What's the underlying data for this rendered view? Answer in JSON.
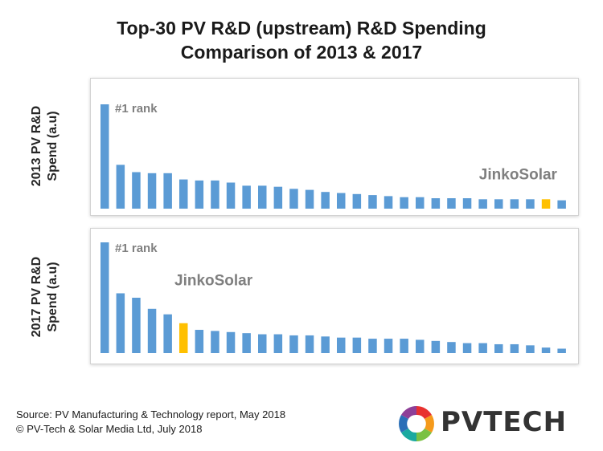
{
  "title_line1": "Top-30 PV R&D (upstream) R&D Spending",
  "title_line2": "Comparison of 2013 & 2017",
  "colors": {
    "bar": "#5b9bd5",
    "highlight": "#ffc000",
    "annotation": "#7f7f7f"
  },
  "chart_data": [
    {
      "type": "bar",
      "ylabel_line1": "2013 PV R&D",
      "ylabel_line2": "Spend (a.u)",
      "ylim": [
        0,
        100
      ],
      "values": [
        100,
        42,
        35,
        34,
        34,
        28,
        27,
        27,
        25,
        22,
        22,
        21,
        19,
        18,
        16,
        15,
        14,
        13,
        12,
        11,
        11,
        10,
        10,
        10,
        9,
        9,
        9,
        9,
        9,
        8
      ],
      "highlight_index": 28,
      "annotations": [
        {
          "text": "#1 rank",
          "index": 0
        },
        {
          "text": "JinkoSolar",
          "index": 28
        }
      ]
    },
    {
      "type": "bar",
      "ylabel_line1": "2017 PV R&D",
      "ylabel_line2": "Spend (a.u)",
      "ylim": [
        0,
        100
      ],
      "values": [
        100,
        54,
        50,
        40,
        35,
        27,
        21,
        20,
        19,
        18,
        17,
        17,
        16,
        16,
        15,
        14,
        14,
        13,
        13,
        13,
        12,
        11,
        10,
        9,
        9,
        8,
        8,
        7,
        5,
        4
      ],
      "highlight_index": 5,
      "annotations": [
        {
          "text": "#1 rank",
          "index": 0
        },
        {
          "text": "JinkoSolar",
          "index": 5
        }
      ]
    }
  ],
  "source_line1": "Source: PV Manufacturing & Technology report, May 2018",
  "source_line2": "© PV-Tech & Solar Media Ltd, July 2018",
  "logo_text": "PVTECH"
}
